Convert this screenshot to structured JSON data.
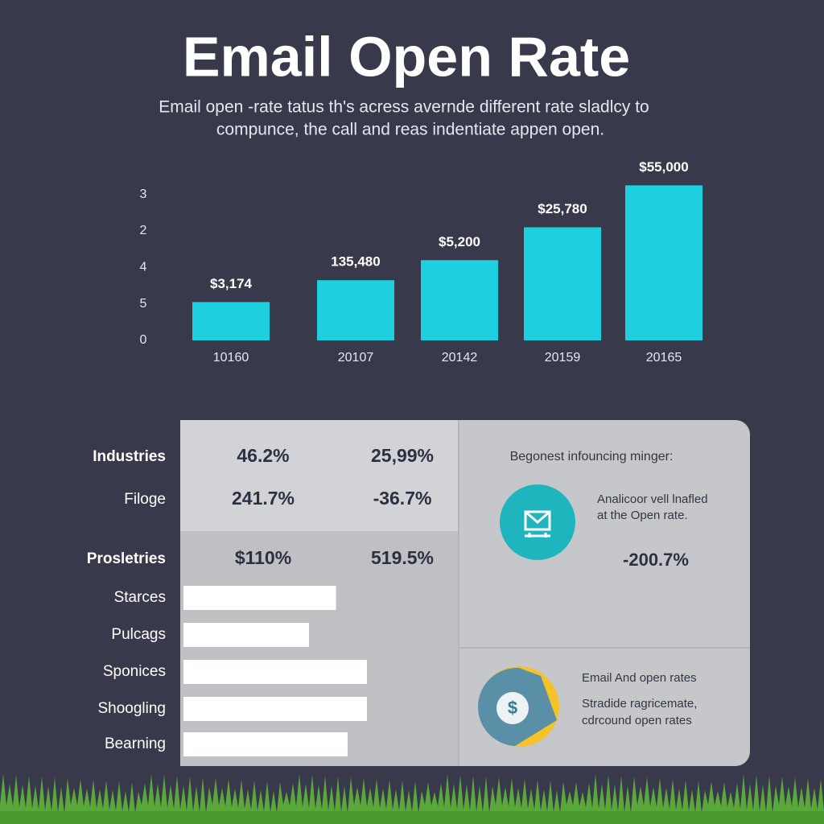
{
  "header": {
    "title": "Email Open Rate",
    "subtitle_lines": [
      "Email open -rate tatus th's acress avernde different rate sladlcy to",
      "compunce, the call and reas indentiate appen open."
    ]
  },
  "chart_data": [
    {
      "type": "bar",
      "categories": [
        "10160",
        "20107",
        "20142",
        "20159",
        "20165"
      ],
      "values": [
        1.05,
        1.65,
        2.2,
        3.1,
        4.25
      ],
      "annotations": [
        "$3,174",
        "135,480",
        "$5,200",
        "$25,780",
        "$55,000"
      ],
      "color": "#1ecfe0",
      "ylim": [
        0,
        4.5
      ],
      "yticks": [
        0,
        {
          "value": 1,
          "label": "5"
        },
        {
          "value": 2,
          "label": "4"
        },
        {
          "value": 3,
          "label": "2"
        },
        {
          "value": 4,
          "label": "3"
        }
      ]
    },
    {
      "type": "hbar",
      "categories": [
        "Starces",
        "Pulcags",
        "Sponices",
        "Shoogling",
        "Bearning"
      ],
      "values": [
        79,
        65,
        95,
        95,
        85
      ],
      "color": "#ffffff",
      "xlim": [
        0,
        100
      ]
    }
  ],
  "table": {
    "rows": [
      [
        "Industries",
        "46.2%",
        "25,99%"
      ],
      [
        "Filoge",
        "241.7%",
        "-36.7%"
      ],
      [
        "Prosletries",
        "$110%",
        "519.5%"
      ]
    ]
  },
  "panel_top": {
    "heading": "Begonest infouncing minger:",
    "text_lines": [
      "Analicoor vell lnafled",
      "at the Open rate."
    ],
    "value": "-200.7%"
  },
  "panel_bottom": {
    "heading": "Email And open rates",
    "text_lines": [
      "Stradide ragricemate,",
      "cdrcound open rates"
    ]
  }
}
